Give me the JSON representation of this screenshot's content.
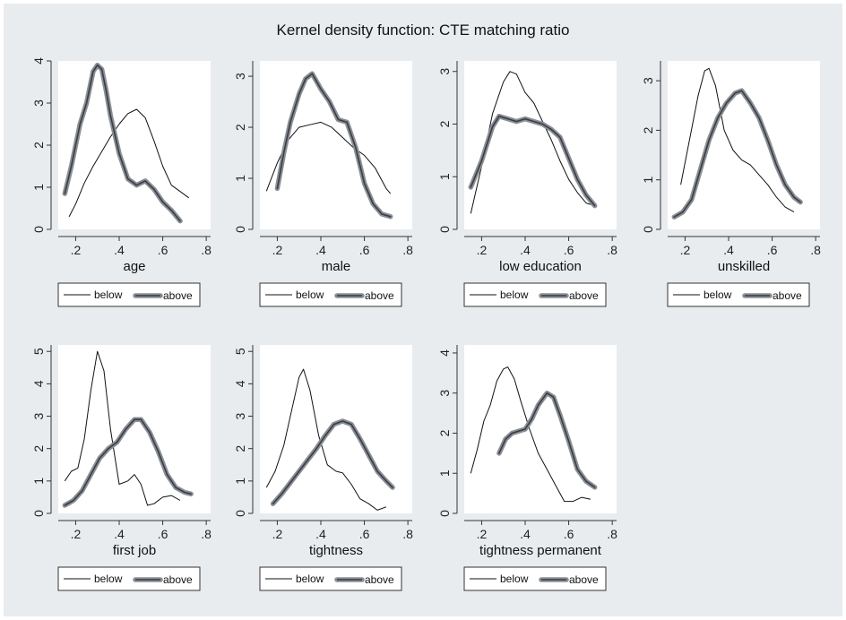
{
  "title": "Kernel density function: CTE matching ratio",
  "chart_data": [
    {
      "type": "line",
      "xlabel": "age",
      "xlim": [
        0.12,
        0.82
      ],
      "ylim": [
        0,
        4
      ],
      "xticks": [
        ".2",
        ".4",
        ".6",
        ".8"
      ],
      "yticks": [
        "0",
        "1",
        "2",
        "3",
        "4"
      ],
      "series": [
        {
          "name": "below",
          "x": [
            0.17,
            0.2,
            0.24,
            0.28,
            0.32,
            0.36,
            0.4,
            0.44,
            0.48,
            0.52,
            0.56,
            0.6,
            0.64,
            0.68,
            0.72
          ],
          "y": [
            0.3,
            0.6,
            1.1,
            1.5,
            1.85,
            2.2,
            2.5,
            2.75,
            2.85,
            2.65,
            2.1,
            1.5,
            1.05,
            0.9,
            0.75
          ]
        },
        {
          "name": "above",
          "x": [
            0.15,
            0.18,
            0.22,
            0.25,
            0.28,
            0.3,
            0.32,
            0.34,
            0.36,
            0.4,
            0.44,
            0.48,
            0.52,
            0.56,
            0.6,
            0.64,
            0.68
          ],
          "y": [
            0.85,
            1.5,
            2.5,
            3.0,
            3.75,
            3.9,
            3.8,
            3.3,
            2.7,
            1.8,
            1.2,
            1.05,
            1.15,
            0.95,
            0.65,
            0.45,
            0.2
          ]
        }
      ]
    },
    {
      "type": "line",
      "xlabel": "male",
      "xlim": [
        0.12,
        0.82
      ],
      "ylim": [
        0,
        3.3
      ],
      "xticks": [
        ".2",
        ".4",
        ".6",
        ".8"
      ],
      "yticks": [
        "0",
        "1",
        "2",
        "3"
      ],
      "series": [
        {
          "name": "below",
          "x": [
            0.15,
            0.2,
            0.25,
            0.3,
            0.35,
            0.4,
            0.45,
            0.5,
            0.55,
            0.6,
            0.65,
            0.7,
            0.72
          ],
          "y": [
            0.75,
            1.3,
            1.75,
            2.0,
            2.05,
            2.1,
            2.0,
            1.8,
            1.6,
            1.45,
            1.2,
            0.8,
            0.7
          ]
        },
        {
          "name": "above",
          "x": [
            0.2,
            0.23,
            0.26,
            0.3,
            0.33,
            0.36,
            0.4,
            0.44,
            0.48,
            0.52,
            0.56,
            0.6,
            0.64,
            0.68,
            0.72
          ],
          "y": [
            0.8,
            1.5,
            2.1,
            2.65,
            2.95,
            3.05,
            2.75,
            2.5,
            2.15,
            2.1,
            1.6,
            0.9,
            0.5,
            0.3,
            0.25
          ]
        }
      ]
    },
    {
      "type": "line",
      "xlabel": "low education",
      "xlim": [
        0.12,
        0.82
      ],
      "ylim": [
        0,
        3.2
      ],
      "xticks": [
        ".2",
        ".4",
        ".6",
        ".8"
      ],
      "yticks": [
        "0",
        "1",
        "2",
        "3"
      ],
      "series": [
        {
          "name": "below",
          "x": [
            0.15,
            0.2,
            0.25,
            0.3,
            0.33,
            0.36,
            0.4,
            0.44,
            0.48,
            0.52,
            0.56,
            0.6,
            0.64,
            0.68,
            0.72
          ],
          "y": [
            0.3,
            1.2,
            2.2,
            2.8,
            3.0,
            2.95,
            2.6,
            2.4,
            2.05,
            1.7,
            1.3,
            0.95,
            0.7,
            0.5,
            0.45
          ]
        },
        {
          "name": "above",
          "x": [
            0.15,
            0.2,
            0.25,
            0.28,
            0.32,
            0.36,
            0.4,
            0.44,
            0.48,
            0.52,
            0.56,
            0.6,
            0.64,
            0.68,
            0.72
          ],
          "y": [
            0.8,
            1.3,
            1.95,
            2.15,
            2.1,
            2.05,
            2.1,
            2.05,
            2.0,
            1.9,
            1.75,
            1.35,
            0.95,
            0.65,
            0.45
          ]
        }
      ]
    },
    {
      "type": "line",
      "xlabel": "unskilled",
      "xlim": [
        0.12,
        0.82
      ],
      "ylim": [
        0,
        3.4
      ],
      "xticks": [
        ".2",
        ".4",
        ".6",
        ".8"
      ],
      "yticks": [
        "0",
        "1",
        "2",
        "3"
      ],
      "series": [
        {
          "name": "below",
          "x": [
            0.18,
            0.22,
            0.26,
            0.29,
            0.31,
            0.34,
            0.38,
            0.42,
            0.46,
            0.5,
            0.54,
            0.58,
            0.62,
            0.66,
            0.7
          ],
          "y": [
            0.9,
            1.8,
            2.7,
            3.2,
            3.25,
            2.9,
            2.0,
            1.6,
            1.4,
            1.3,
            1.1,
            0.9,
            0.65,
            0.45,
            0.35
          ]
        },
        {
          "name": "above",
          "x": [
            0.15,
            0.19,
            0.23,
            0.27,
            0.31,
            0.35,
            0.39,
            0.43,
            0.46,
            0.5,
            0.54,
            0.58,
            0.62,
            0.66,
            0.7,
            0.73
          ],
          "y": [
            0.25,
            0.35,
            0.6,
            1.2,
            1.8,
            2.25,
            2.55,
            2.75,
            2.8,
            2.55,
            2.25,
            1.8,
            1.3,
            0.9,
            0.65,
            0.55
          ]
        }
      ]
    },
    {
      "type": "line",
      "xlabel": "first job",
      "xlim": [
        0.12,
        0.82
      ],
      "ylim": [
        0,
        5.2
      ],
      "xticks": [
        ".2",
        ".4",
        ".6",
        ".8"
      ],
      "yticks": [
        "0",
        "1",
        "2",
        "3",
        "4",
        "5"
      ],
      "series": [
        {
          "name": "below",
          "x": [
            0.15,
            0.18,
            0.21,
            0.24,
            0.27,
            0.3,
            0.33,
            0.36,
            0.4,
            0.44,
            0.47,
            0.5,
            0.53,
            0.56,
            0.6,
            0.64,
            0.68
          ],
          "y": [
            1.0,
            1.3,
            1.4,
            2.3,
            3.8,
            5.0,
            4.4,
            2.6,
            0.9,
            1.0,
            1.2,
            0.9,
            0.25,
            0.3,
            0.5,
            0.55,
            0.4
          ]
        },
        {
          "name": "above",
          "x": [
            0.15,
            0.19,
            0.23,
            0.27,
            0.31,
            0.35,
            0.39,
            0.43,
            0.47,
            0.5,
            0.54,
            0.58,
            0.62,
            0.66,
            0.7,
            0.73
          ],
          "y": [
            0.25,
            0.4,
            0.7,
            1.2,
            1.7,
            2.0,
            2.2,
            2.6,
            2.9,
            2.9,
            2.5,
            1.9,
            1.2,
            0.8,
            0.65,
            0.6
          ]
        }
      ]
    },
    {
      "type": "line",
      "xlabel": "tightness",
      "xlim": [
        0.12,
        0.82
      ],
      "ylim": [
        0,
        5.2
      ],
      "xticks": [
        ".2",
        ".4",
        ".6",
        ".8"
      ],
      "yticks": [
        "0",
        "1",
        "2",
        "3",
        "4",
        "5"
      ],
      "series": [
        {
          "name": "below",
          "x": [
            0.15,
            0.19,
            0.23,
            0.27,
            0.3,
            0.32,
            0.35,
            0.39,
            0.43,
            0.47,
            0.5,
            0.54,
            0.58,
            0.62,
            0.66,
            0.7
          ],
          "y": [
            0.8,
            1.3,
            2.1,
            3.3,
            4.2,
            4.45,
            3.8,
            2.4,
            1.5,
            1.3,
            1.25,
            0.9,
            0.45,
            0.3,
            0.1,
            0.2
          ]
        },
        {
          "name": "above",
          "x": [
            0.18,
            0.22,
            0.26,
            0.3,
            0.34,
            0.38,
            0.42,
            0.46,
            0.5,
            0.54,
            0.58,
            0.62,
            0.66,
            0.7,
            0.73
          ],
          "y": [
            0.3,
            0.6,
            0.95,
            1.3,
            1.65,
            2.0,
            2.4,
            2.75,
            2.85,
            2.75,
            2.3,
            1.8,
            1.3,
            1.0,
            0.8
          ]
        }
      ]
    },
    {
      "type": "line",
      "xlabel": "tightness permanent",
      "xlim": [
        0.12,
        0.82
      ],
      "ylim": [
        0,
        4.2
      ],
      "xticks": [
        ".2",
        ".4",
        ".6",
        ".8"
      ],
      "yticks": [
        "0",
        "1",
        "2",
        "3",
        "4"
      ],
      "series": [
        {
          "name": "below",
          "x": [
            0.15,
            0.18,
            0.21,
            0.24,
            0.27,
            0.3,
            0.32,
            0.35,
            0.38,
            0.42,
            0.46,
            0.5,
            0.54,
            0.58,
            0.62,
            0.66,
            0.7
          ],
          "y": [
            1.0,
            1.6,
            2.3,
            2.7,
            3.3,
            3.6,
            3.65,
            3.35,
            2.8,
            2.1,
            1.5,
            1.1,
            0.7,
            0.3,
            0.3,
            0.4,
            0.35
          ]
        },
        {
          "name": "above",
          "x": [
            0.28,
            0.31,
            0.34,
            0.37,
            0.4,
            0.43,
            0.46,
            0.5,
            0.53,
            0.56,
            0.6,
            0.64,
            0.68,
            0.72
          ],
          "y": [
            1.5,
            1.85,
            2.0,
            2.05,
            2.1,
            2.35,
            2.7,
            3.0,
            2.9,
            2.45,
            1.8,
            1.1,
            0.8,
            0.65
          ]
        }
      ]
    }
  ]
}
